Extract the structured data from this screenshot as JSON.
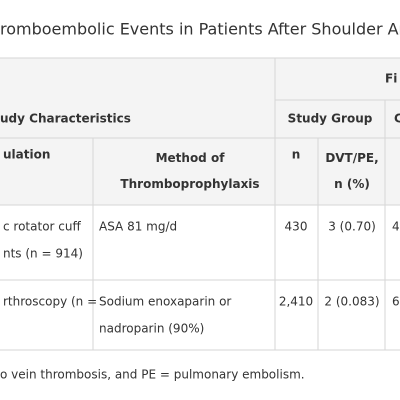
{
  "title": "romboembolic Events in Patients After Shoulder Arthro",
  "table": {
    "header_row_1": {
      "findings": "Fi"
    },
    "header_row_2": {
      "characteristics": "udy Characteristics",
      "study_group": "Study Group",
      "other": "C"
    },
    "header_row_3": {
      "population": [
        "ulation"
      ],
      "method": [
        "Method of",
        "Thromboprophylaxis"
      ],
      "n": [
        "n"
      ],
      "dvt_pe": [
        "DVT/PE,",
        "n (%)"
      ]
    },
    "rows": [
      [
        [
          "c rotator cuff",
          "nts (n = 914)"
        ],
        [
          "ASA 81 mg/d"
        ],
        [
          "430"
        ],
        [
          "3 (0.70)"
        ],
        [
          "4"
        ]
      ],
      [
        [
          "rthroscopy (n ="
        ],
        [
          "Sodium enoxaparin or",
          "nadroparin (90%)"
        ],
        [
          "2,410"
        ],
        [
          "2 (0.083)"
        ],
        [
          "6"
        ]
      ]
    ]
  },
  "footnote": "o vein thrombosis, and PE = pulmonary embolism."
}
